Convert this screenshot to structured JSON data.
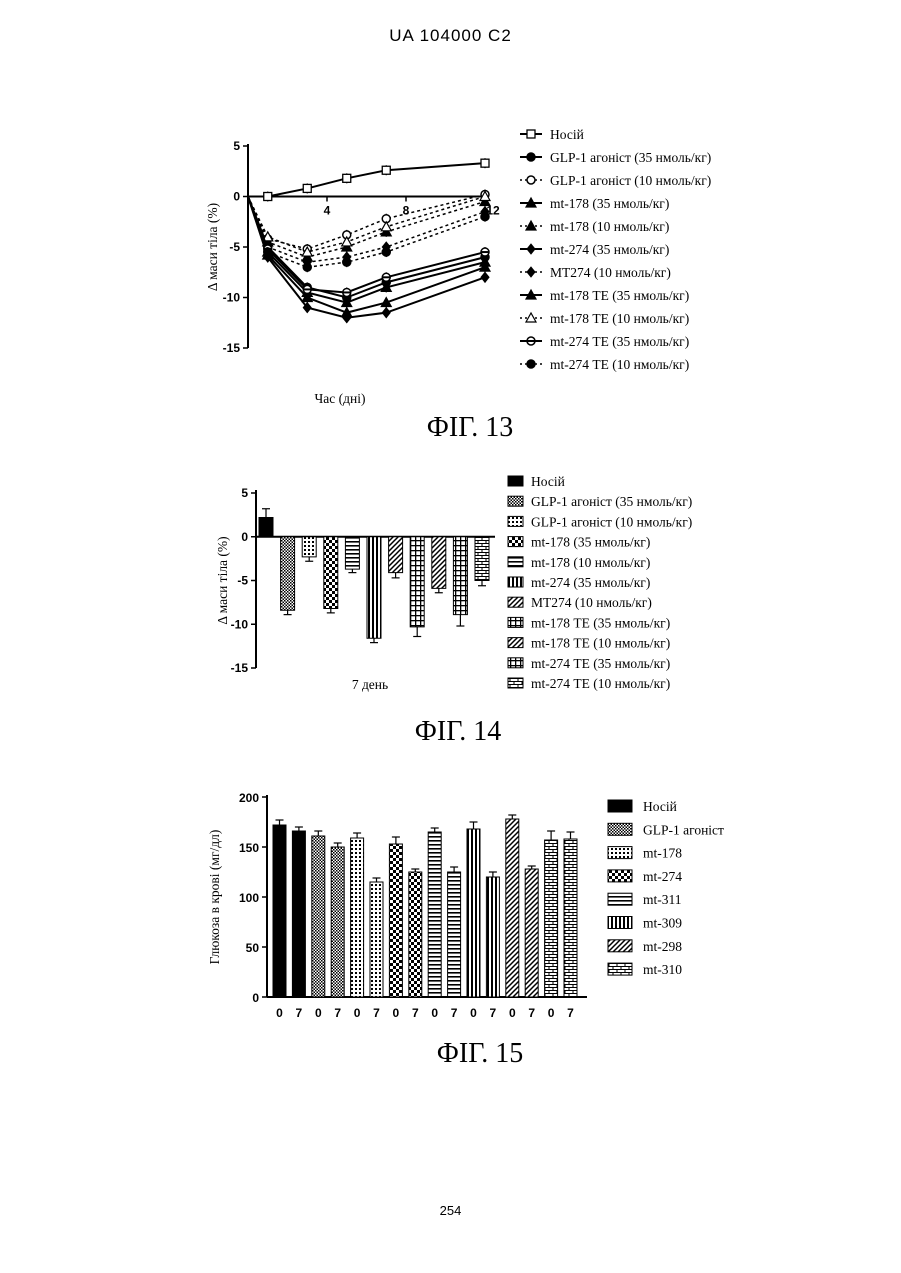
{
  "header": "UA   104000   C2",
  "page_number": "254",
  "figures": [
    {
      "label": "ФІГ. 13"
    },
    {
      "label": "ФІГ. 14"
    },
    {
      "label": "ФІГ. 15"
    }
  ],
  "chart_data": [
    {
      "type": "line",
      "title": "",
      "xlabel": "Час (дні)",
      "ylabel": "Δ маси тіла (%)",
      "xlim": [
        0,
        12
      ],
      "ylim": [
        -15,
        5
      ],
      "xticks": [
        "4",
        "8",
        "12"
      ],
      "yticks": [
        "5",
        "0",
        "-5",
        "-10",
        "-15"
      ],
      "x": [
        0,
        1,
        3,
        5,
        7,
        12
      ],
      "legend_position": "right",
      "series": [
        {
          "name": "Носій",
          "style": "solid",
          "marker": "square-open",
          "values": [
            0,
            0,
            0.8,
            1.8,
            2.6,
            3.3
          ]
        },
        {
          "name": "GLP-1 агоніст (35 нмоль/кг)",
          "style": "solid",
          "marker": "circle",
          "values": [
            0,
            -5.0,
            -9.0,
            -10.0,
            -8.5,
            -6.0
          ]
        },
        {
          "name": "GLP-1 агоніст (10 нмоль/кг)",
          "style": "dotted",
          "marker": "circle-open",
          "values": [
            0,
            -4.2,
            -5.2,
            -3.8,
            -2.2,
            0.2
          ]
        },
        {
          "name": "mt-178 (35 нмоль/кг)",
          "style": "solid",
          "marker": "triangle",
          "values": [
            0,
            -5.5,
            -9.5,
            -10.5,
            -9.0,
            -6.5
          ]
        },
        {
          "name": "mt-178 (10 нмоль/кг)",
          "style": "dotted",
          "marker": "triangle",
          "values": [
            0,
            -4.5,
            -6.0,
            -5.0,
            -3.5,
            -0.5
          ]
        },
        {
          "name": "mt-274 (35 нмоль/кг)",
          "style": "solid",
          "marker": "diamond",
          "values": [
            0,
            -6.0,
            -11.0,
            -12.0,
            -11.5,
            -8.0
          ]
        },
        {
          "name": "МТ274 (10 нмоль/кг)",
          "style": "dotted",
          "marker": "diamond",
          "values": [
            0,
            -5.0,
            -6.5,
            -6.0,
            -5.0,
            -1.5
          ]
        },
        {
          "name": "mt-178 ТЕ (35 нмоль/кг)",
          "style": "solid",
          "marker": "triangle",
          "values": [
            0,
            -5.8,
            -10.0,
            -11.5,
            -10.5,
            -7.0
          ]
        },
        {
          "name": "mt-178 ТЕ (10 нмоль/кг)",
          "style": "dotted",
          "marker": "triangle-open",
          "values": [
            0,
            -4.0,
            -5.5,
            -4.5,
            -3.0,
            0
          ]
        },
        {
          "name": "mt-274 ТЕ (35 нмоль/кг)",
          "style": "solid",
          "marker": "circle-half",
          "values": [
            0,
            -5.2,
            -9.2,
            -9.5,
            -8.0,
            -5.5
          ]
        },
        {
          "name": "mt-274 ТЕ (10 нмоль/кг)",
          "style": "dotted",
          "marker": "circle",
          "values": [
            0,
            -5.5,
            -7.0,
            -6.5,
            -5.5,
            -2.0
          ]
        }
      ]
    },
    {
      "type": "bar",
      "title": "",
      "xlabel": "7 день",
      "ylabel": "Δ маси тіла (%)",
      "ylim": [
        -15,
        5
      ],
      "yticks": [
        "5",
        "0",
        "-5",
        "-10",
        "-15"
      ],
      "legend_position": "right",
      "categories": [
        "Носій",
        "GLP-1 агоніст (35 нмоль/кг)",
        "GLP-1 агоніст (10 нмоль/кг)",
        "mt-178 (35 нмоль/кг)",
        "mt-178 (10 нмоль/кг)",
        "mt-274 (35 нмоль/кг)",
        "МТ274 (10 нмоль/кг)",
        "mt-178 ТЕ (35 нмоль/кг)",
        "mt-178 ТЕ (10 нмоль/кг)",
        "mt-274 ТЕ (35 нмоль/кг)",
        "mt-274 ТЕ (10 нмоль/кг)"
      ],
      "values": [
        2.2,
        -8.4,
        -2.3,
        -8.2,
        -3.7,
        -11.6,
        -4.1,
        -10.3,
        -5.9,
        -8.9,
        -5.0
      ],
      "errors": [
        1.0,
        0.5,
        0.5,
        0.5,
        0.4,
        0.5,
        0.6,
        1.1,
        0.5,
        1.3,
        0.6
      ]
    },
    {
      "type": "bar",
      "title": "",
      "xlabel": "",
      "ylabel": "Глюкоза в крові (мг/дл)",
      "ylim": [
        0,
        200
      ],
      "yticks": [
        "200",
        "150",
        "100",
        "50",
        "0"
      ],
      "legend_position": "right",
      "categories": [
        "0",
        "7",
        "0",
        "7",
        "0",
        "7",
        "0",
        "7",
        "0",
        "7",
        "0",
        "7",
        "0",
        "7",
        "0",
        "7"
      ],
      "group_names": [
        "Носій",
        "GLP-1 агоніст",
        "mt-178",
        "mt-274",
        "mt-311",
        "mt-309",
        "mt-298",
        "mt-310"
      ],
      "values": [
        172,
        166,
        161,
        150,
        159,
        115,
        153,
        125,
        165,
        125,
        168,
        120,
        178,
        128,
        157,
        158
      ],
      "errors": [
        5,
        4,
        5,
        4,
        5,
        4,
        7,
        3,
        4,
        5,
        7,
        5,
        4,
        3,
        9,
        7
      ]
    }
  ]
}
